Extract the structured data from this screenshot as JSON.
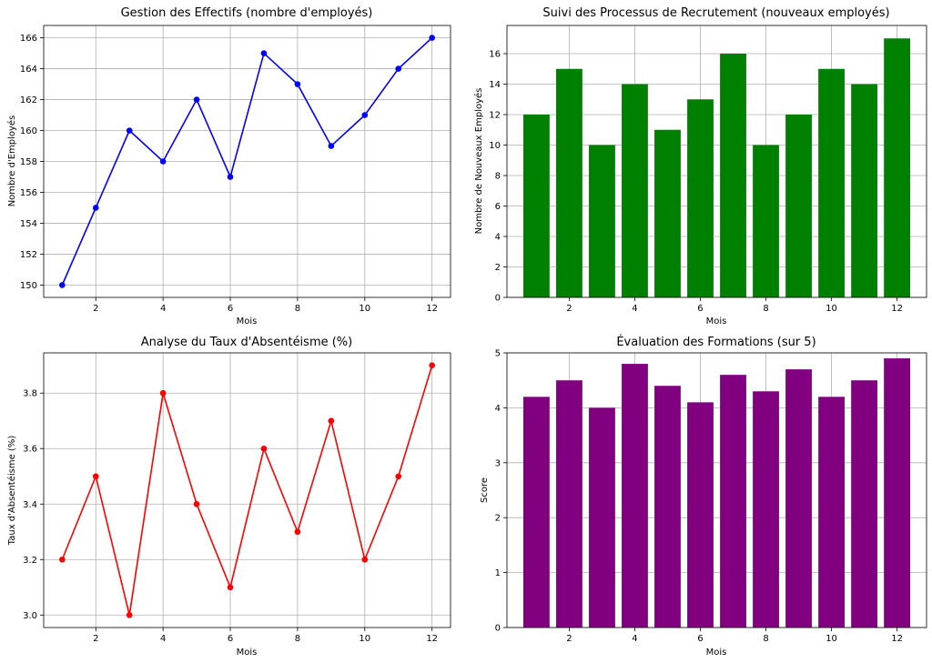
{
  "chart_data": [
    {
      "type": "line",
      "title": "Gestion des Effectifs (nombre d'employés)",
      "xlabel": "Mois",
      "ylabel": "Nombre d'Employés",
      "color": "#0000ff",
      "x": [
        1,
        2,
        3,
        4,
        5,
        6,
        7,
        8,
        9,
        10,
        11,
        12
      ],
      "values": [
        150,
        155,
        160,
        158,
        162,
        157,
        165,
        163,
        159,
        161,
        164,
        166
      ],
      "xlim": [
        0.45,
        12.55
      ],
      "ylim": [
        149.2,
        166.8
      ],
      "xticks": [
        2,
        4,
        6,
        8,
        10,
        12
      ],
      "yticks": [
        150,
        152,
        154,
        156,
        158,
        160,
        162,
        164,
        166
      ],
      "grid": true
    },
    {
      "type": "bar",
      "title": "Suivi des Processus de Recrutement (nouveaux employés)",
      "xlabel": "Mois",
      "ylabel": "Nombre de Nouveaux Employés",
      "color": "#008000",
      "x": [
        1,
        2,
        3,
        4,
        5,
        6,
        7,
        8,
        9,
        10,
        11,
        12
      ],
      "values": [
        12,
        15,
        10,
        14,
        11,
        13,
        16,
        10,
        12,
        15,
        14,
        17
      ],
      "xlim": [
        0.1,
        12.9
      ],
      "ylim": [
        0,
        17.85
      ],
      "xticks": [
        2,
        4,
        6,
        8,
        10,
        12
      ],
      "yticks": [
        0,
        2,
        4,
        6,
        8,
        10,
        12,
        14,
        16
      ],
      "grid": true
    },
    {
      "type": "line",
      "title": "Analyse du Taux d'Absentéisme (%)",
      "xlabel": "Mois",
      "ylabel": "Taux d'Absentéisme (%)",
      "color": "#ff0000",
      "x": [
        1,
        2,
        3,
        4,
        5,
        6,
        7,
        8,
        9,
        10,
        11,
        12
      ],
      "values": [
        3.2,
        3.5,
        3.0,
        3.8,
        3.4,
        3.1,
        3.6,
        3.3,
        3.7,
        3.2,
        3.5,
        3.9
      ],
      "xlim": [
        0.45,
        12.55
      ],
      "ylim": [
        2.955,
        3.945
      ],
      "xticks": [
        2,
        4,
        6,
        8,
        10,
        12
      ],
      "yticks": [
        3.0,
        3.2,
        3.4,
        3.6,
        3.8
      ],
      "grid": true
    },
    {
      "type": "bar",
      "title": "Évaluation des Formations (sur 5)",
      "xlabel": "Mois",
      "ylabel": "Score",
      "color": "#800080",
      "x": [
        1,
        2,
        3,
        4,
        5,
        6,
        7,
        8,
        9,
        10,
        11,
        12
      ],
      "values": [
        4.2,
        4.5,
        4.0,
        4.8,
        4.4,
        4.1,
        4.6,
        4.3,
        4.7,
        4.2,
        4.5,
        4.9
      ],
      "xlim": [
        0.1,
        12.9
      ],
      "ylim": [
        0,
        5.0
      ],
      "xticks": [
        2,
        4,
        6,
        8,
        10,
        12
      ],
      "yticks": [
        0,
        1,
        2,
        3,
        4,
        5
      ],
      "grid": true
    }
  ]
}
